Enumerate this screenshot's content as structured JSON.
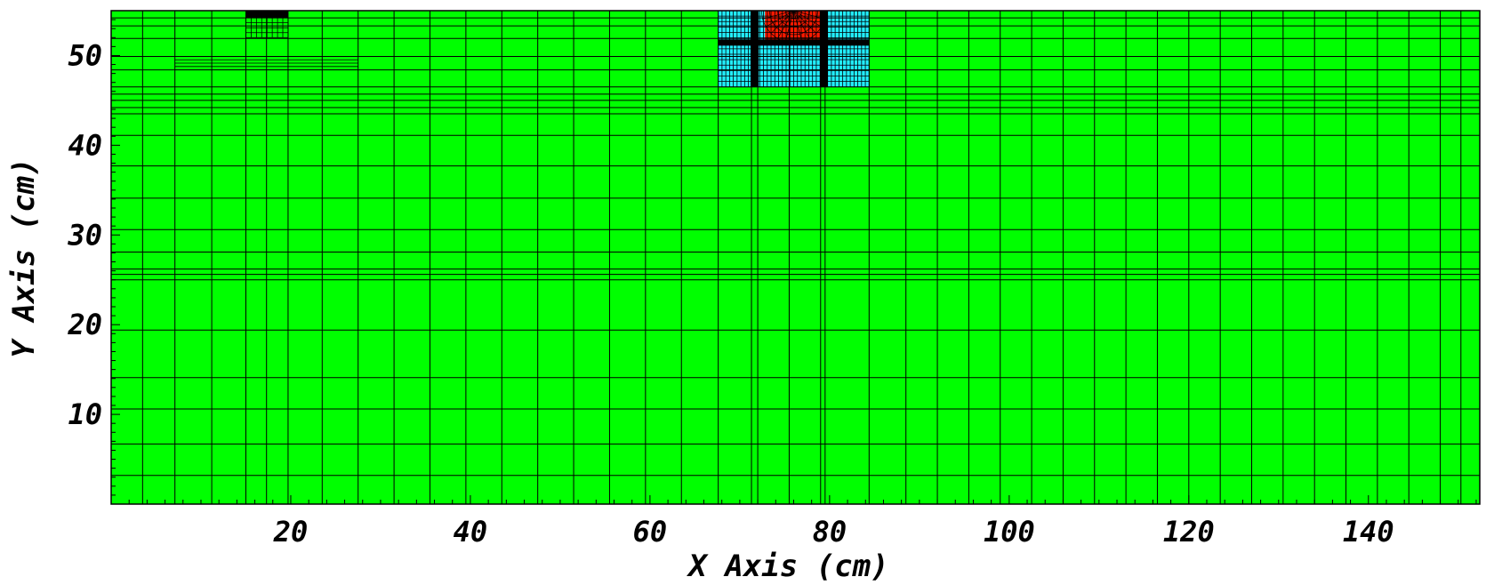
{
  "chart_data": {
    "type": "heatmap",
    "title": "",
    "xlabel": "X Axis (cm)",
    "ylabel": "Y Axis (cm)",
    "xlim": [
      0,
      152.4
    ],
    "ylim": [
      0,
      55
    ],
    "x_ticks": [
      20,
      40,
      60,
      80,
      100,
      120,
      140
    ],
    "y_ticks": [
      10,
      20,
      30,
      40,
      50
    ],
    "background_color": "#00ff00",
    "mesh_line_color": "#000000",
    "regions": [
      {
        "name": "background-mesh",
        "color": "#00ff00",
        "x": [
          0,
          152.4
        ],
        "y": [
          0,
          55
        ]
      },
      {
        "name": "cyan-block",
        "color": "#22eeff",
        "x": [
          67.6,
          84.4
        ],
        "y": [
          46.5,
          55
        ]
      },
      {
        "name": "red-circle-region",
        "color": "#ff1a00",
        "x": [
          72.8,
          79.3
        ],
        "y": [
          51.5,
          55
        ]
      },
      {
        "name": "black-strip",
        "color": "#000000",
        "x": [
          15.0,
          19.7
        ],
        "y": [
          54.2,
          55
        ]
      }
    ],
    "mesh_x": [
      3.5,
      7.1,
      11.2,
      15.0,
      17.3,
      19.7,
      23.5,
      27.5,
      31.5,
      35.5,
      39.5,
      43.5,
      47.5,
      51.5,
      55.5,
      59.5,
      63.5,
      67.6,
      71.3,
      72.0,
      75.5,
      79.0,
      79.5,
      84.4,
      88.5,
      92.0,
      95.5,
      99.0,
      102.5,
      106.0,
      109.5,
      113.0,
      116.5,
      120.0,
      123.5,
      127.0,
      130.5,
      134.0,
      137.5,
      141.0,
      144.5,
      148.0,
      150.3
    ],
    "mesh_y": [
      3.2,
      6.7,
      10.6,
      14.1,
      19.4,
      25.0,
      25.6,
      26.2,
      28.1,
      30.6,
      34.1,
      37.7,
      41.1,
      43.5,
      44.2,
      45.0,
      45.7,
      46.5,
      48.4,
      49.9,
      51.9,
      53.3,
      54.2
    ],
    "fine_mesh_regions": [
      {
        "x": [
          7.1,
          27.5
        ],
        "y": [
          48.4,
          49.9
        ]
      },
      {
        "x": [
          15.0,
          19.7
        ],
        "y": [
          52.0,
          54.2
        ]
      },
      {
        "x": [
          67.6,
          84.4
        ],
        "y": [
          46.5,
          55
        ]
      }
    ]
  }
}
